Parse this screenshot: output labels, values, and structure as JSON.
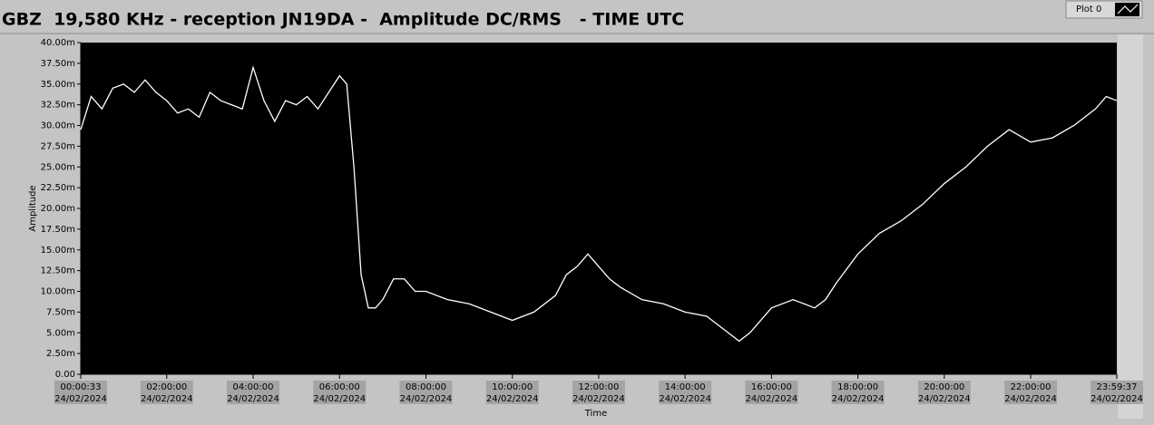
{
  "chart_data": {
    "type": "line",
    "title": "GBZ  19,580 KHz - reception JN19DA -  Amplitude DC/RMS   - TIME UTC",
    "x_label": "Time",
    "y_label": "Amplitude",
    "x": [
      "00:00:33",
      "00:15:00",
      "00:30:00",
      "00:45:00",
      "01:00:00",
      "01:15:00",
      "01:30:00",
      "01:45:00",
      "02:00:00",
      "02:15:00",
      "02:30:00",
      "02:45:00",
      "03:00:00",
      "03:15:00",
      "03:30:00",
      "03:45:00",
      "04:00:00",
      "04:15:00",
      "04:30:00",
      "04:45:00",
      "05:00:00",
      "05:15:00",
      "05:30:00",
      "05:45:00",
      "06:00:00",
      "06:10:00",
      "06:20:00",
      "06:30:00",
      "06:40:00",
      "06:50:00",
      "07:00:00",
      "07:15:00",
      "07:30:00",
      "07:45:00",
      "08:00:00",
      "08:30:00",
      "09:00:00",
      "09:30:00",
      "10:00:00",
      "10:30:00",
      "11:00:00",
      "11:15:00",
      "11:30:00",
      "11:45:00",
      "12:00:00",
      "12:15:00",
      "12:30:00",
      "13:00:00",
      "13:30:00",
      "14:00:00",
      "14:30:00",
      "15:00:00",
      "15:15:00",
      "15:30:00",
      "16:00:00",
      "16:30:00",
      "17:00:00",
      "17:15:00",
      "17:30:00",
      "18:00:00",
      "18:30:00",
      "19:00:00",
      "19:30:00",
      "20:00:00",
      "20:30:00",
      "21:00:00",
      "21:30:00",
      "22:00:00",
      "22:30:00",
      "23:00:00",
      "23:30:00",
      "23:45:00",
      "23:59:37"
    ],
    "series": [
      {
        "name": "Plot 0",
        "color": "#ffffff",
        "values": [
          0.0295,
          0.0335,
          0.032,
          0.0345,
          0.035,
          0.034,
          0.0355,
          0.034,
          0.033,
          0.0315,
          0.032,
          0.031,
          0.034,
          0.033,
          0.0325,
          0.032,
          0.037,
          0.033,
          0.0305,
          0.033,
          0.0325,
          0.0335,
          0.032,
          0.034,
          0.036,
          0.035,
          0.025,
          0.012,
          0.008,
          0.008,
          0.009,
          0.0115,
          0.0115,
          0.01,
          0.01,
          0.009,
          0.0085,
          0.0075,
          0.0065,
          0.0075,
          0.0095,
          0.012,
          0.013,
          0.0145,
          0.013,
          0.0115,
          0.0105,
          0.009,
          0.0085,
          0.0075,
          0.007,
          0.005,
          0.004,
          0.005,
          0.008,
          0.009,
          0.008,
          0.009,
          0.011,
          0.0145,
          0.017,
          0.0185,
          0.0205,
          0.023,
          0.025,
          0.0275,
          0.0295,
          0.028,
          0.0285,
          0.03,
          0.032,
          0.0335,
          0.033
        ]
      }
    ],
    "xlim": [
      "00:00:33",
      "23:59:37"
    ],
    "xticks": [
      "00:00:33",
      "02:00:00",
      "04:00:00",
      "06:00:00",
      "08:00:00",
      "10:00:00",
      "12:00:00",
      "14:00:00",
      "16:00:00",
      "18:00:00",
      "20:00:00",
      "22:00:00",
      "23:59:37"
    ],
    "xtick_dates": [
      "24/02/2024",
      "24/02/2024",
      "24/02/2024",
      "24/02/2024",
      "24/02/2024",
      "24/02/2024",
      "24/02/2024",
      "24/02/2024",
      "24/02/2024",
      "24/02/2024",
      "24/02/2024",
      "24/02/2024",
      "24/02/2024"
    ],
    "ylim": [
      0,
      0.04
    ],
    "yticks": [
      {
        "value": 0,
        "label": "0.00"
      },
      {
        "value": 0.0025,
        "label": "2.50m"
      },
      {
        "value": 0.005,
        "label": "5.00m"
      },
      {
        "value": 0.0075,
        "label": "7.50m"
      },
      {
        "value": 0.01,
        "label": "10.00m"
      },
      {
        "value": 0.0125,
        "label": "12.50m"
      },
      {
        "value": 0.015,
        "label": "15.00m"
      },
      {
        "value": 0.0175,
        "label": "17.50m"
      },
      {
        "value": 0.02,
        "label": "20.00m"
      },
      {
        "value": 0.0225,
        "label": "22.50m"
      },
      {
        "value": 0.025,
        "label": "25.00m"
      },
      {
        "value": 0.0275,
        "label": "27.50m"
      },
      {
        "value": 0.03,
        "label": "30.00m"
      },
      {
        "value": 0.0325,
        "label": "32.50m"
      },
      {
        "value": 0.035,
        "label": "35.00m"
      },
      {
        "value": 0.0375,
        "label": "37.50m"
      },
      {
        "value": 0.04,
        "label": "40.00m"
      }
    ]
  }
}
